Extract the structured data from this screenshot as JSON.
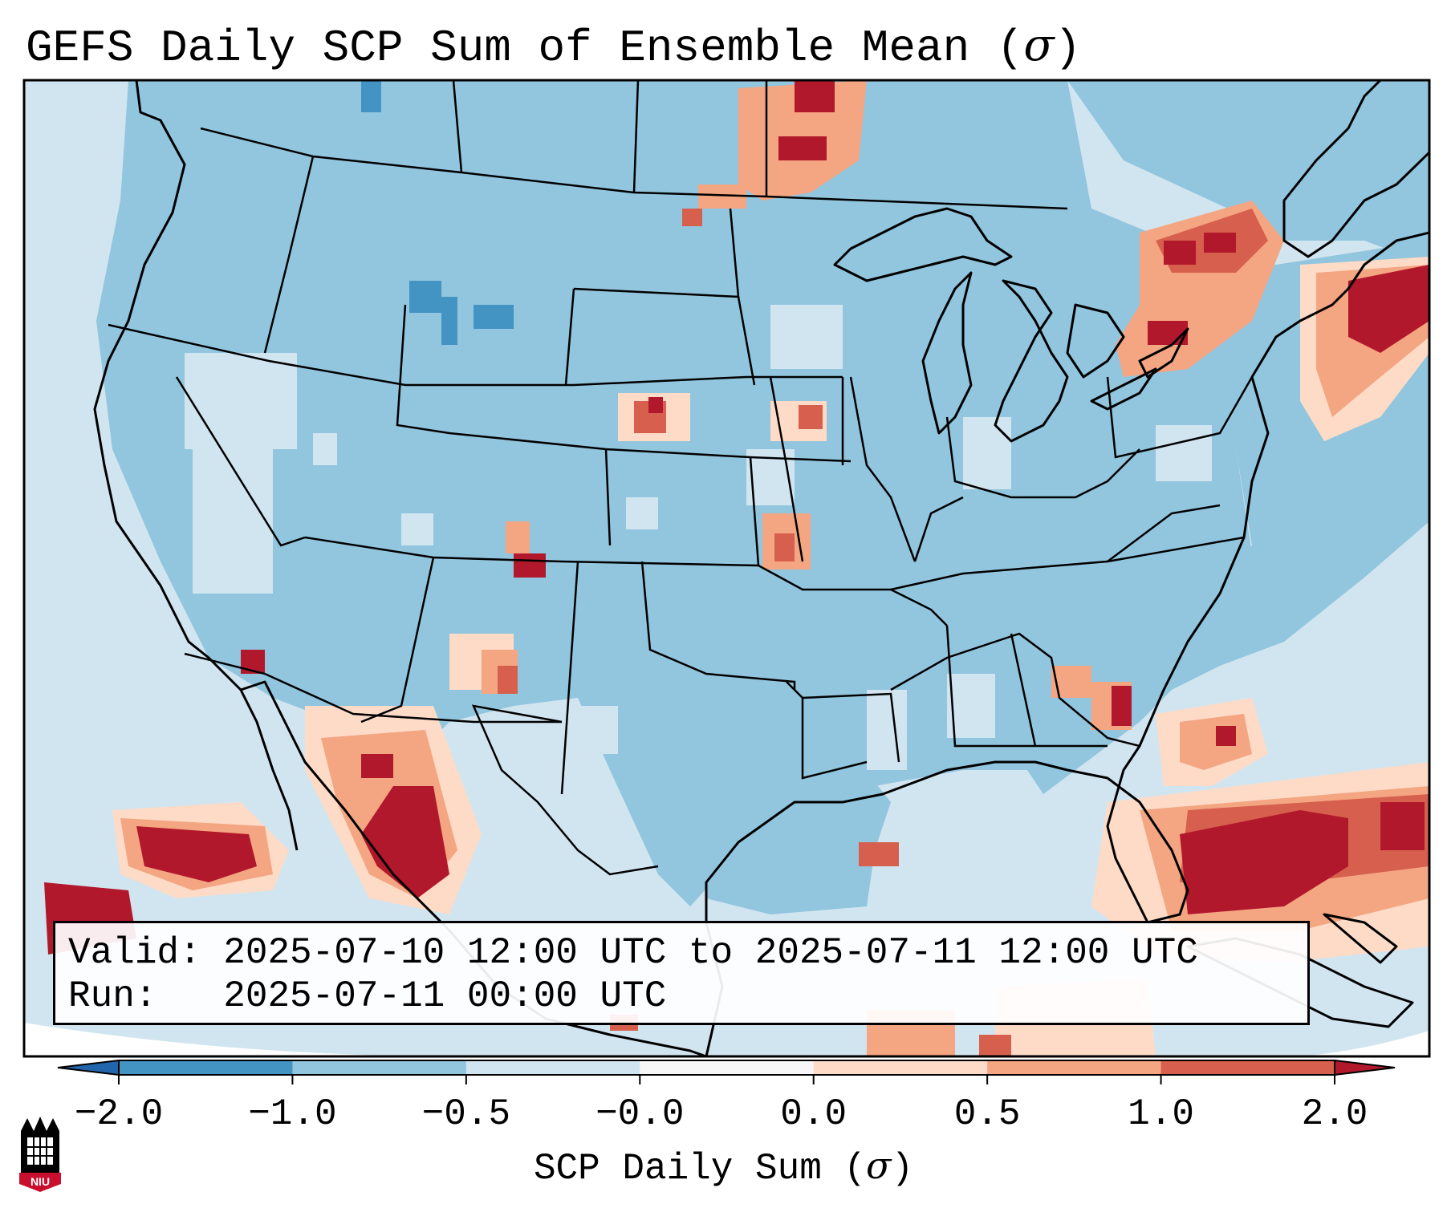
{
  "title": {
    "main": "GEFS Daily SCP Sum of Ensemble Mean (",
    "symbol": "σ",
    "close": ")"
  },
  "info": {
    "valid_line": "Valid: 2025-07-10 12:00 UTC to 2025-07-11 12:00 UTC",
    "run_line": "Run:   2025-07-11 00:00 UTC"
  },
  "colorbar": {
    "label_main": "SCP Daily Sum (",
    "label_symbol": "σ",
    "label_close": ")",
    "ticks": [
      "−2.0",
      "−1.0",
      "−0.5",
      "−0.0",
      "0.0",
      "0.5",
      "1.0",
      "2.0"
    ],
    "bin_colors": [
      "#4393c3",
      "#92c5de",
      "#d1e5f0",
      "#f7f7f7",
      "#fddbc7",
      "#f4a582",
      "#d6604d"
    ],
    "under_color": "#2166ac",
    "over_color": "#b2182b"
  },
  "colors": {
    "ocean_neutral": "#d1e5f0",
    "land_blue": "#92c5de",
    "deep_blue": "#4393c3",
    "light_red": "#fddbc7",
    "mid_red": "#f4a582",
    "red": "#d6604d",
    "dark_red": "#b2182b",
    "outside_projection": "#ffffff"
  },
  "logo": {
    "text": "NIU"
  }
}
